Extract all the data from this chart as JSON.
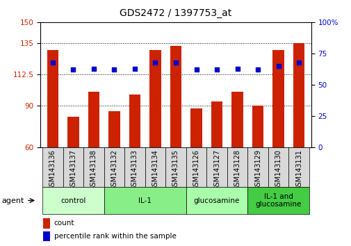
{
  "title": "GDS2472 / 1397753_at",
  "samples": [
    "GSM143136",
    "GSM143137",
    "GSM143138",
    "GSM143132",
    "GSM143133",
    "GSM143134",
    "GSM143135",
    "GSM143126",
    "GSM143127",
    "GSM143128",
    "GSM143129",
    "GSM143130",
    "GSM143131"
  ],
  "bar_values": [
    130,
    82,
    100,
    86,
    98,
    130,
    133,
    88,
    93,
    100,
    90,
    130,
    135
  ],
  "dot_values": [
    68,
    62,
    63,
    62,
    63,
    68,
    68,
    62,
    62,
    63,
    62,
    65,
    68
  ],
  "ylim_left": [
    60,
    150
  ],
  "ylim_right": [
    0,
    100
  ],
  "yticks_left": [
    60,
    90,
    112.5,
    135,
    150
  ],
  "yticks_right": [
    0,
    25,
    50,
    75,
    100
  ],
  "bar_color": "#cc2200",
  "dot_color": "#0000cc",
  "groups": [
    {
      "label": "control",
      "start": 0,
      "end": 3,
      "color": "#ccffcc"
    },
    {
      "label": "IL-1",
      "start": 3,
      "end": 7,
      "color": "#88ee88"
    },
    {
      "label": "glucosamine",
      "start": 7,
      "end": 10,
      "color": "#aaffaa"
    },
    {
      "label": "IL-1 and\nglucosamine",
      "start": 10,
      "end": 13,
      "color": "#44cc44"
    }
  ],
  "title_fontsize": 10,
  "bar_fontsize": 7,
  "tick_fontsize": 7.5,
  "legend_fontsize": 7.5,
  "group_fontsize": 7.5,
  "agent_fontsize": 8
}
